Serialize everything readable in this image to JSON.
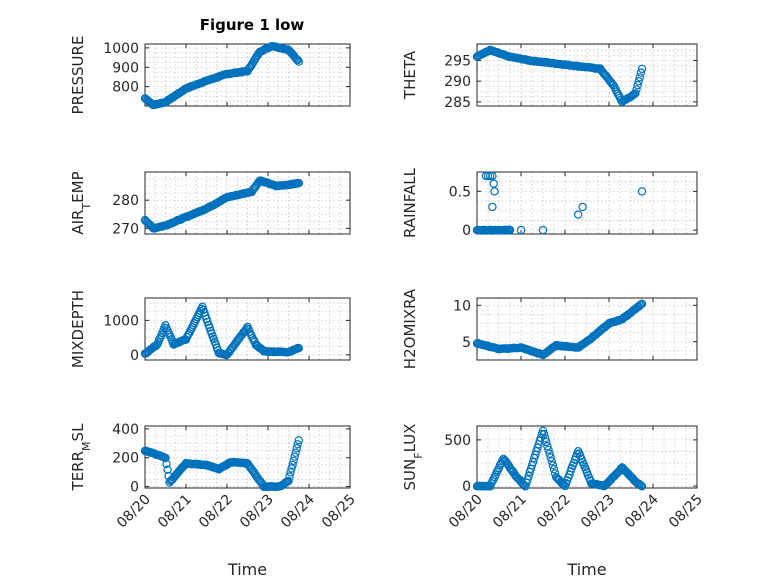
{
  "figure": {
    "title": "Figure 1 low"
  },
  "x_ticklabels": [
    "08/20",
    "08/21",
    "08/22",
    "08/23",
    "08/24",
    "08/25"
  ],
  "marker_color": "#0072BD",
  "chart_data": [
    {
      "type": "scatter",
      "id": "pressure",
      "ylabel_parts": [
        [
          "PRESSURE",
          ""
        ]
      ],
      "xlim": [
        0,
        5
      ],
      "ylim": [
        700,
        1020
      ],
      "yticks": [
        800,
        900,
        1000
      ],
      "grid": true,
      "xlabel": "",
      "title": "Figure 1 low",
      "key": [
        [
          0,
          740
        ],
        [
          0.2,
          705
        ],
        [
          0.5,
          720
        ],
        [
          1,
          790
        ],
        [
          1.5,
          830
        ],
        [
          2,
          865
        ],
        [
          2.5,
          880
        ],
        [
          2.8,
          980
        ],
        [
          3.1,
          1010
        ],
        [
          3.5,
          990
        ],
        [
          3.75,
          930
        ]
      ]
    },
    {
      "type": "scatter",
      "id": "theta",
      "ylabel_parts": [
        [
          "THETA",
          ""
        ]
      ],
      "xlim": [
        0,
        5
      ],
      "ylim": [
        284,
        299
      ],
      "yticks": [
        285,
        290,
        295
      ],
      "grid": true,
      "xlabel": "",
      "key": [
        [
          0,
          296
        ],
        [
          0.3,
          297.5
        ],
        [
          0.7,
          296
        ],
        [
          1.2,
          295
        ],
        [
          2,
          294
        ],
        [
          2.8,
          293
        ],
        [
          3.1,
          289
        ],
        [
          3.3,
          285
        ],
        [
          3.6,
          287
        ],
        [
          3.75,
          293
        ]
      ]
    },
    {
      "type": "scatter",
      "id": "air_temp",
      "ylabel_parts": [
        [
          "AIR",
          ""
        ],
        [
          "T",
          "sub"
        ],
        [
          "EMP",
          ""
        ]
      ],
      "xlim": [
        0,
        5
      ],
      "ylim": [
        268,
        290
      ],
      "yticks": [
        270,
        280
      ],
      "grid": true,
      "xlabel": "",
      "key": [
        [
          0,
          273
        ],
        [
          0.2,
          270
        ],
        [
          0.5,
          271
        ],
        [
          1,
          274
        ],
        [
          1.5,
          277
        ],
        [
          2,
          281
        ],
        [
          2.6,
          283
        ],
        [
          2.8,
          287
        ],
        [
          3.2,
          285
        ],
        [
          3.5,
          285.5
        ],
        [
          3.75,
          286
        ]
      ]
    },
    {
      "type": "scatter",
      "id": "rainfall",
      "ylabel_parts": [
        [
          "RAINFALL",
          ""
        ]
      ],
      "xlim": [
        0,
        5
      ],
      "ylim": [
        -0.05,
        0.75
      ],
      "yticks": [
        0,
        0.5
      ],
      "grid": true,
      "xlabel": "",
      "key": [
        [
          0,
          0
        ],
        [
          0.75,
          0
        ]
      ],
      "extra": [
        [
          0.2,
          0.7
        ],
        [
          0.25,
          0.7
        ],
        [
          0.3,
          0.7
        ],
        [
          0.35,
          0.7
        ],
        [
          0.38,
          0.6
        ],
        [
          0.35,
          0.3
        ],
        [
          0.4,
          0.5
        ],
        [
          1,
          0
        ],
        [
          1.5,
          0
        ],
        [
          2.3,
          0.2
        ],
        [
          2.4,
          0.3
        ],
        [
          3.75,
          0.5
        ]
      ]
    },
    {
      "type": "scatter",
      "id": "mixdepth",
      "ylabel_parts": [
        [
          "MIXDEPTH",
          ""
        ]
      ],
      "xlim": [
        0,
        5
      ],
      "ylim": [
        -150,
        1650
      ],
      "yticks": [
        0,
        1000
      ],
      "grid": true,
      "xlabel": "",
      "key": [
        [
          0,
          30
        ],
        [
          0.3,
          300
        ],
        [
          0.5,
          850
        ],
        [
          0.7,
          300
        ],
        [
          1,
          450
        ],
        [
          1.4,
          1400
        ],
        [
          1.6,
          700
        ],
        [
          1.8,
          50
        ],
        [
          2,
          0
        ],
        [
          2.5,
          800
        ],
        [
          2.7,
          300
        ],
        [
          2.9,
          100
        ],
        [
          3.5,
          80
        ],
        [
          3.75,
          200
        ]
      ]
    },
    {
      "type": "scatter",
      "id": "h2omixra",
      "ylabel_parts": [
        [
          "H2OMIXRA",
          ""
        ]
      ],
      "xlim": [
        0,
        5
      ],
      "ylim": [
        2.5,
        11
      ],
      "yticks": [
        5,
        10
      ],
      "grid": true,
      "xlabel": "",
      "key": [
        [
          0,
          4.8
        ],
        [
          0.5,
          4
        ],
        [
          1,
          4.2
        ],
        [
          1.5,
          3.2
        ],
        [
          1.8,
          4.5
        ],
        [
          2.3,
          4.2
        ],
        [
          2.6,
          5.5
        ],
        [
          3,
          7.5
        ],
        [
          3.3,
          8.1
        ],
        [
          3.75,
          10.2
        ]
      ]
    },
    {
      "type": "scatter",
      "id": "terr_msl",
      "ylabel_parts": [
        [
          "TERR",
          ""
        ],
        [
          "M",
          "sub"
        ],
        [
          "SL",
          ""
        ]
      ],
      "xlim": [
        0,
        5
      ],
      "ylim": [
        -10,
        420
      ],
      "yticks": [
        0,
        200,
        400
      ],
      "grid": true,
      "xlabel": "Time",
      "key": [
        [
          0,
          250
        ],
        [
          0.5,
          200
        ],
        [
          0.6,
          30
        ],
        [
          1,
          160
        ],
        [
          1.5,
          150
        ],
        [
          1.8,
          120
        ],
        [
          2.1,
          170
        ],
        [
          2.5,
          160
        ],
        [
          2.9,
          0
        ],
        [
          3.3,
          0
        ],
        [
          3.5,
          40
        ],
        [
          3.75,
          320
        ]
      ]
    },
    {
      "type": "scatter",
      "id": "sun_flux",
      "ylabel_parts": [
        [
          "SUN",
          ""
        ],
        [
          "F",
          "sub"
        ],
        [
          "LUX",
          ""
        ]
      ],
      "xlim": [
        0,
        5
      ],
      "ylim": [
        -20,
        650
      ],
      "yticks": [
        0,
        500
      ],
      "grid": true,
      "xlabel": "Time",
      "key": [
        [
          0,
          0
        ],
        [
          0.3,
          0
        ],
        [
          0.6,
          300
        ],
        [
          0.9,
          100
        ],
        [
          1.1,
          0
        ],
        [
          1.5,
          600
        ],
        [
          1.8,
          100
        ],
        [
          2,
          0
        ],
        [
          2.3,
          380
        ],
        [
          2.6,
          30
        ],
        [
          2.9,
          0
        ],
        [
          3.3,
          200
        ],
        [
          3.6,
          50
        ],
        [
          3.75,
          0
        ]
      ]
    }
  ]
}
